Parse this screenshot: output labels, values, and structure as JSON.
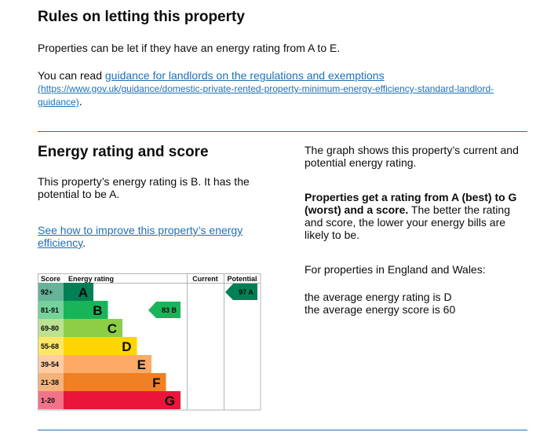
{
  "rules": {
    "heading": "Rules on letting this property",
    "intro": "Properties can be let if they have an energy rating from A to E.",
    "read_prefix": "You can read ",
    "guidance_link": "guidance for landlords on the regulations and exemptions",
    "guidance_url_part1": "(https://www.gov.uk/guidance/domestic-private-rented-property-minimum-energy-efficiency-standard-landlord-",
    "guidance_url_part2": "guidance)",
    "period": "."
  },
  "energy": {
    "heading": "Energy rating and score",
    "rating_text": "This property’s energy rating is B. It has the potential to be A.",
    "improve_link": "See how to improve this property’s energy efficiency",
    "period": "."
  },
  "side": {
    "graph_text": "The graph shows this property’s current and potential energy rating.",
    "bold_text": "Properties get a rating from A (best) to G (worst) and a score.",
    "rest_text": " The better the rating and score, the lower your energy bills are likely to be.",
    "england_wales": "For properties in England and Wales:",
    "avg_rating": "the average energy rating is D",
    "avg_score": "the average energy score is 60"
  },
  "chart_data": {
    "type": "bar",
    "headers": {
      "score": "Score",
      "rating": "Energy rating",
      "current": "Current",
      "potential": "Potential"
    },
    "bands": [
      {
        "score": "92+",
        "letter": "A",
        "color": "#008054",
        "score_color": "#66b398"
      },
      {
        "score": "81-91",
        "letter": "B",
        "color": "#19b459",
        "score_color": "#75d29b"
      },
      {
        "score": "69-80",
        "letter": "C",
        "color": "#8dce46",
        "score_color": "#bbe290"
      },
      {
        "score": "55-68",
        "letter": "D",
        "color": "#ffd500",
        "score_color": "#ffe666"
      },
      {
        "score": "39-54",
        "letter": "E",
        "color": "#fcaa65",
        "score_color": "#fdcca3"
      },
      {
        "score": "21-38",
        "letter": "F",
        "color": "#ef8023",
        "score_color": "#f5b37b"
      },
      {
        "score": "1-20",
        "letter": "G",
        "color": "#e9153b",
        "score_color": "#f27389"
      }
    ],
    "current": {
      "score": 83,
      "letter": "B",
      "label": "83  B"
    },
    "potential": {
      "score": 97,
      "letter": "A",
      "label": "97  A"
    }
  }
}
